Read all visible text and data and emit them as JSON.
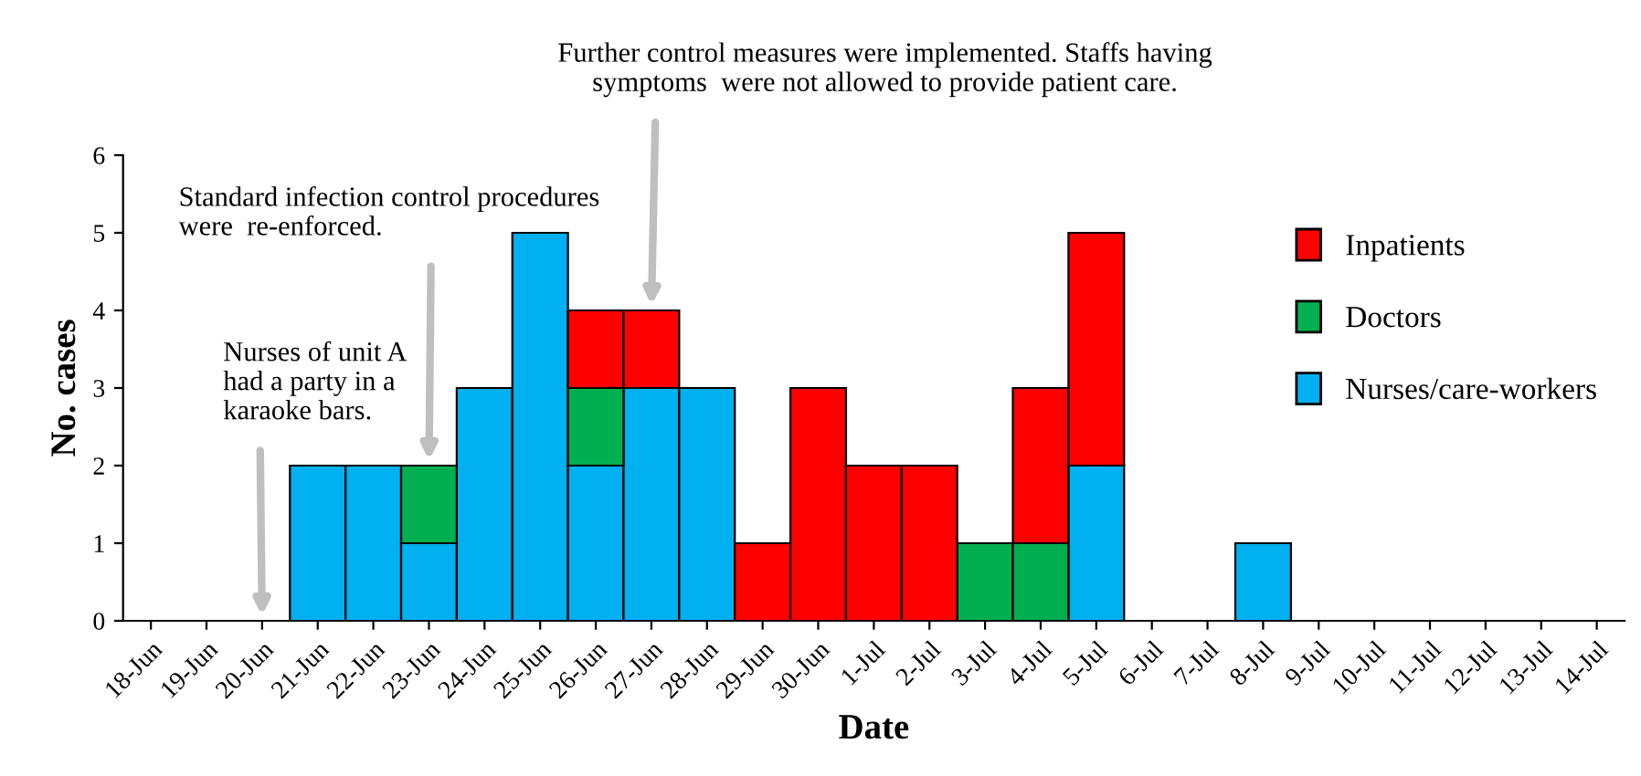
{
  "chart_data": {
    "type": "bar",
    "stacked": true,
    "xlabel": "Date",
    "ylabel": "No. cases",
    "categories": [
      "18-Jun",
      "19-Jun",
      "20-Jun",
      "21-Jun",
      "22-Jun",
      "23-Jun",
      "24-Jun",
      "25-Jun",
      "26-Jun",
      "27-Jun",
      "28-Jun",
      "29-Jun",
      "30-Jun",
      "1-Jul",
      "2-Jul",
      "3-Jul",
      "4-Jul",
      "5-Jul",
      "6-Jul",
      "7-Jul",
      "8-Jul",
      "9-Jul",
      "10-Jul",
      "11-Jul",
      "12-Jul",
      "13-Jul",
      "14-Jul"
    ],
    "series": [
      {
        "name": "Nurses/care-workers",
        "color": "#00b0f0",
        "values": [
          0,
          0,
          0,
          2,
          2,
          1,
          3,
          5,
          2,
          3,
          3,
          0,
          0,
          0,
          0,
          0,
          0,
          2,
          0,
          0,
          1,
          0,
          0,
          0,
          0,
          0,
          0
        ]
      },
      {
        "name": "Doctors",
        "color": "#00b050",
        "values": [
          0,
          0,
          0,
          0,
          0,
          1,
          0,
          0,
          1,
          0,
          0,
          0,
          0,
          0,
          0,
          1,
          1,
          0,
          0,
          0,
          0,
          0,
          0,
          0,
          0,
          0,
          0
        ]
      },
      {
        "name": "Inpatients",
        "color": "#ff0000",
        "values": [
          0,
          0,
          0,
          0,
          0,
          0,
          0,
          0,
          1,
          1,
          0,
          1,
          3,
          2,
          2,
          0,
          2,
          3,
          0,
          0,
          0,
          0,
          0,
          0,
          0,
          0,
          0
        ]
      }
    ],
    "ylim": [
      0,
      6
    ],
    "yticks": [
      0,
      1,
      2,
      3,
      4,
      5,
      6
    ],
    "grid": false,
    "legend": "top right",
    "annotations": [
      {
        "text": "Nurses of unit A\nhad a party in a\nkaraoke bars.",
        "x": "20-Jun",
        "y": 0
      },
      {
        "text": "Standard infection control procedures\nwere  re-enforced.",
        "x": "23-Jun",
        "y": 2
      },
      {
        "text": "Further control measures were implemented. Staffs having\nsymptoms  were not allowed to provide patient care.",
        "x": "27-Jun",
        "y": 4
      }
    ]
  }
}
